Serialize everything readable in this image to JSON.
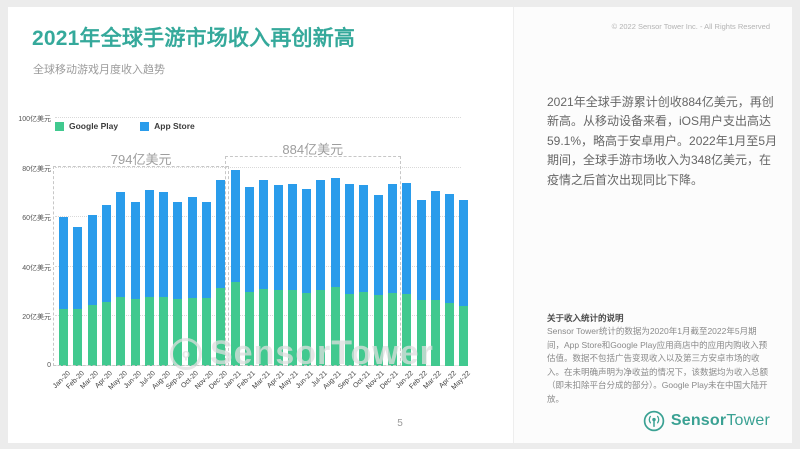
{
  "slide": {
    "title": "2021年全球手游市场收入再创新高",
    "subtitle": "全球移动游戏月度收入趋势",
    "page_number": "5"
  },
  "right_panel": {
    "copyright": "© 2022 Sensor Tower Inc. - All Rights Reserved",
    "summary": "2021年全球手游累计创收884亿美元，再创新高。从移动设备来看，iOS用户支出高达59.1%，略高于安卓用户。2022年1月至5月期间，全球手游市场收入为348亿美元，在疫情之后首次出现同比下降。",
    "note_title": "关于收入统计的说明",
    "note_body": "Sensor Tower统计的数据为2020年1月截至2022年5月期间，App Store和Google Play应用商店中的应用内购收入预估值。数据不包括广告变现收入以及第三方安卓市场的收入。在未明确声明为净收益的情况下，该数据均为收入总额（即未扣除平台分成的部分）。Google Play未在中国大陆开放。",
    "logo": {
      "text_bold": "Sensor",
      "text_regular": "Tower"
    }
  },
  "colors": {
    "accent_teal": "#35a99b",
    "google_play_green": "#41c98f",
    "app_store_blue": "#2a9ceb"
  },
  "chart_data": {
    "type": "bar",
    "stacked": true,
    "unit": "亿美元",
    "categories": [
      "Jan-20",
      "Feb-20",
      "Mar-20",
      "Apr-20",
      "May-20",
      "Jun-20",
      "Jul-20",
      "Aug-20",
      "Sep-20",
      "Oct-20",
      "Nov-20",
      "Dec-20",
      "Jan-21",
      "Feb-21",
      "Mar-21",
      "Apr-21",
      "May-21",
      "Jun-21",
      "Jul-21",
      "Aug-21",
      "Sep-21",
      "Oct-21",
      "Nov-21",
      "Dec-21",
      "Jan-22",
      "Feb-22",
      "Mar-22",
      "Apr-22",
      "May-22"
    ],
    "series": [
      {
        "name": "Google Play",
        "color": "#41c98f",
        "values": [
          23,
          23,
          24.5,
          26,
          28,
          27,
          28,
          28,
          27,
          27.5,
          27.5,
          31.5,
          34,
          30,
          31,
          30.5,
          30.5,
          29.5,
          30.5,
          32,
          29,
          30,
          28.5,
          29.5,
          29,
          26.5,
          26.5,
          25.5,
          24
        ]
      },
      {
        "name": "App Store",
        "color": "#2a9ceb",
        "values": [
          37,
          33,
          36.5,
          39,
          42,
          39,
          43,
          42,
          39,
          40.5,
          38.5,
          43.5,
          45,
          42,
          44,
          42.5,
          43,
          42,
          44.5,
          44,
          44.5,
          43,
          40.5,
          44,
          45,
          40.5,
          44,
          44,
          43
        ]
      }
    ],
    "ylim": [
      0,
      100
    ],
    "y_ticks": [
      0,
      20,
      40,
      60,
      80,
      100
    ],
    "y_tick_labels": [
      "0",
      "20亿美元",
      "40亿美元",
      "60亿美元",
      "80亿美元",
      "100亿美元"
    ],
    "grid": true,
    "legend_position": "top-left",
    "annotations": [
      {
        "label": "794亿美元",
        "total": 794,
        "start": "Jan-20",
        "end": "Dec-20"
      },
      {
        "label": "884亿美元",
        "total": 884,
        "start": "Jan-21",
        "end": "Dec-21"
      }
    ],
    "watermark": "SensorTower"
  }
}
